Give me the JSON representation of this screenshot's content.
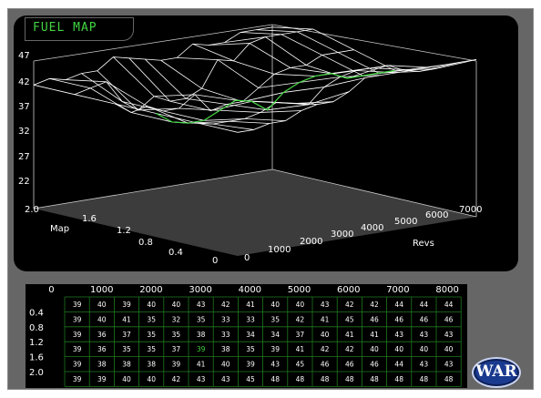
{
  "title": "FUEL MAP",
  "logo": "WAR",
  "chart_data": {
    "type": "surface",
    "title": "FUEL MAP",
    "zlabel_ticks": [
      "47",
      "42",
      "37",
      "32",
      "27",
      "22"
    ],
    "map_axis_label": "Map",
    "map_ticks": [
      "2.0",
      "1.6",
      "1.2",
      "0.8",
      "0.4",
      "0"
    ],
    "revs_axis_label": "Revs",
    "revs_ticks": [
      "0",
      "1000",
      "2000",
      "3000",
      "4000",
      "5000",
      "6000",
      "7000"
    ],
    "rpm_headers": [
      "0",
      "1000",
      "2000",
      "3000",
      "4000",
      "5000",
      "6000",
      "7000",
      "8000"
    ],
    "map_headers": [
      "0.4",
      "0.8",
      "1.2",
      "1.6",
      "2.0"
    ],
    "table": [
      [
        "39",
        "40",
        "39",
        "40",
        "40",
        "43",
        "42",
        "41",
        "40",
        "40",
        "43",
        "42",
        "42",
        "44",
        "44",
        "44"
      ],
      [
        "39",
        "40",
        "41",
        "35",
        "32",
        "35",
        "33",
        "33",
        "35",
        "42",
        "41",
        "45",
        "46",
        "46",
        "46",
        "46"
      ],
      [
        "39",
        "36",
        "37",
        "35",
        "35",
        "38",
        "33",
        "34",
        "34",
        "37",
        "40",
        "41",
        "41",
        "43",
        "43",
        "43"
      ],
      [
        "39",
        "36",
        "35",
        "35",
        "37",
        "39",
        "38",
        "35",
        "39",
        "41",
        "42",
        "42",
        "40",
        "40",
        "40",
        "40"
      ],
      [
        "39",
        "38",
        "38",
        "38",
        "39",
        "41",
        "40",
        "39",
        "43",
        "45",
        "46",
        "46",
        "46",
        "44",
        "43",
        "43"
      ],
      [
        "39",
        "39",
        "40",
        "40",
        "42",
        "43",
        "43",
        "45",
        "48",
        "48",
        "48",
        "48",
        "48",
        "48",
        "48",
        "48"
      ]
    ],
    "highlight_cell": [
      3,
      5
    ],
    "colors": {
      "grid": "#ffffff",
      "highlight": "#41d541",
      "floor": "#3c3c3c",
      "background": "#000000"
    }
  }
}
